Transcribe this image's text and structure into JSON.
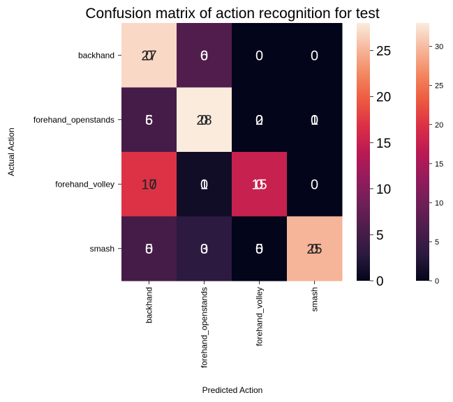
{
  "chart_data": {
    "type": "heatmap",
    "title": "Confusion matrix of action recognition for test",
    "xlabel": "Predicted Action",
    "ylabel": "Actual Action",
    "x_categories": [
      "backhand",
      "forehand_openstands",
      "forehand_volley",
      "smash"
    ],
    "y_categories": [
      "backhand",
      "forehand_openstands",
      "forehand_volley",
      "smash"
    ],
    "values": [
      [
        27,
        6,
        0,
        0
      ],
      [
        5,
        28,
        0,
        0
      ],
      [
        17,
        1,
        15,
        0
      ],
      [
        5,
        3,
        0,
        25
      ]
    ],
    "overlay_values": [
      [
        0,
        0,
        0,
        0
      ],
      [
        6,
        0,
        2,
        1
      ],
      [
        10,
        0,
        0,
        0
      ],
      [
        0,
        0,
        5,
        0
      ]
    ],
    "colormap": "rocket",
    "colorbars": [
      {
        "range": [
          0,
          28
        ],
        "ticks": [
          0,
          5,
          10,
          15,
          20,
          25
        ]
      },
      {
        "range": [
          0,
          33
        ],
        "ticks": [
          0,
          5,
          10,
          15,
          20,
          25,
          30
        ]
      }
    ]
  }
}
